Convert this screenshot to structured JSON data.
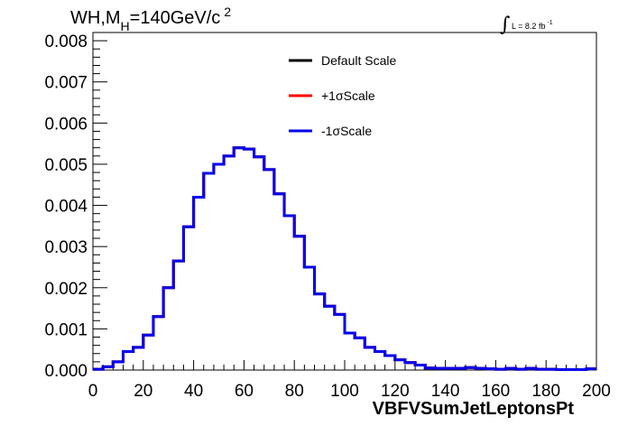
{
  "chart_data": {
    "type": "line",
    "step": true,
    "title": {
      "pre": "WH,M",
      "sub": "H",
      "post": "=140GeV/c",
      "sup": "2"
    },
    "lumi": {
      "symbol": "∫",
      "text": "L = 8.2 fb",
      "sup": "-1"
    },
    "xlabel": "VBFVSumJetLeptonsPt",
    "ylabel": "",
    "xlim": [
      0,
      200
    ],
    "ylim": [
      0,
      0.0082
    ],
    "x_ticks": [
      "0",
      "20",
      "40",
      "60",
      "80",
      "100",
      "120",
      "140",
      "160",
      "180",
      "200"
    ],
    "y_ticks": [
      "0.000",
      "0.001",
      "0.002",
      "0.003",
      "0.004",
      "0.005",
      "0.006",
      "0.007",
      "0.008"
    ],
    "bin_width": 4,
    "x": [
      0,
      4,
      8,
      12,
      16,
      20,
      24,
      28,
      32,
      36,
      40,
      44,
      48,
      52,
      56,
      60,
      64,
      68,
      72,
      76,
      80,
      84,
      88,
      92,
      96,
      100,
      104,
      108,
      112,
      116,
      120,
      124,
      128,
      132,
      136,
      140,
      144,
      148,
      152,
      156,
      160,
      164,
      168,
      172,
      176,
      180,
      184,
      188,
      192,
      196
    ],
    "series": [
      {
        "name": "Default Scale",
        "color": "#000000",
        "values": [
          2e-05,
          8e-05,
          0.0002,
          0.00045,
          0.00055,
          0.00085,
          0.0013,
          0.002,
          0.00265,
          0.00348,
          0.0042,
          0.00478,
          0.005,
          0.0052,
          0.0054,
          0.00537,
          0.00518,
          0.00487,
          0.00428,
          0.00375,
          0.00325,
          0.0025,
          0.00185,
          0.00155,
          0.00135,
          0.0009,
          0.00078,
          0.00055,
          0.00045,
          0.00035,
          0.00025,
          0.00018,
          0.00012,
          5e-05,
          4e-05,
          4e-05,
          4e-05,
          6e-05,
          4e-05,
          3e-05,
          2e-05,
          4e-05,
          2e-05,
          4e-05,
          2e-05,
          2e-05,
          1e-05,
          1e-05,
          1e-05,
          3e-05
        ]
      },
      {
        "name": "+1σScale",
        "color": "#ff0000",
        "values": [
          2e-05,
          8e-05,
          0.0002,
          0.00045,
          0.00055,
          0.00085,
          0.0013,
          0.002,
          0.00265,
          0.00348,
          0.0042,
          0.00478,
          0.005,
          0.0052,
          0.0054,
          0.00537,
          0.00518,
          0.00487,
          0.00428,
          0.00375,
          0.00325,
          0.0025,
          0.00185,
          0.00155,
          0.00135,
          0.0009,
          0.00078,
          0.00055,
          0.00045,
          0.00035,
          0.00025,
          0.00018,
          0.00012,
          5e-05,
          4e-05,
          4e-05,
          4e-05,
          6e-05,
          4e-05,
          3e-05,
          2e-05,
          4e-05,
          2e-05,
          4e-05,
          2e-05,
          2e-05,
          1e-05,
          1e-05,
          1e-05,
          3e-05
        ]
      },
      {
        "name": "-1σScale",
        "color": "#0000ee",
        "values": [
          2e-05,
          8e-05,
          0.0002,
          0.00045,
          0.00055,
          0.00085,
          0.0013,
          0.002,
          0.00265,
          0.00348,
          0.0042,
          0.00478,
          0.005,
          0.0052,
          0.0054,
          0.00537,
          0.00518,
          0.00487,
          0.00428,
          0.00375,
          0.00325,
          0.0025,
          0.00185,
          0.00155,
          0.00135,
          0.0009,
          0.00078,
          0.00055,
          0.00045,
          0.00035,
          0.00025,
          0.00018,
          0.00012,
          5e-05,
          4e-05,
          4e-05,
          4e-05,
          6e-05,
          4e-05,
          3e-05,
          2e-05,
          4e-05,
          2e-05,
          4e-05,
          2e-05,
          2e-05,
          1e-05,
          1e-05,
          1e-05,
          3e-05
        ]
      }
    ],
    "legend_position": "top-center",
    "grid": false
  }
}
